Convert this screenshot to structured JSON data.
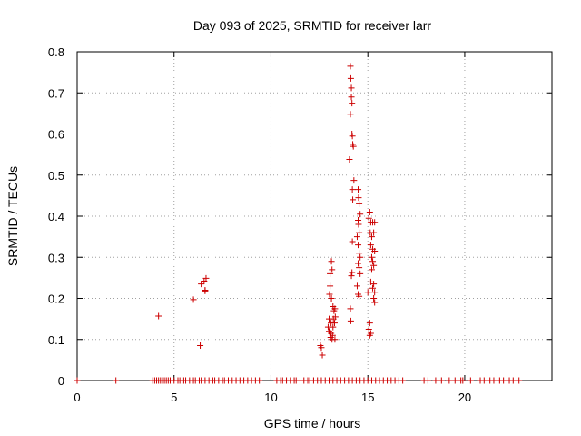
{
  "chart_data": {
    "type": "scatter",
    "title": "Day 093 of 2025, SRMTID for receiver larr",
    "xlabel": "GPS time / hours",
    "ylabel": "SRMTID / TECUs",
    "xlim": [
      0,
      24.5
    ],
    "ylim": [
      0,
      0.8
    ],
    "xticks": [
      0,
      5,
      10,
      15,
      20
    ],
    "yticks": [
      0,
      0.1,
      0.2,
      0.3,
      0.4,
      0.5,
      0.6,
      0.7,
      0.8
    ],
    "grid": true,
    "marker": "plus",
    "color": "#cc0000",
    "series": [
      {
        "name": "SRMTID",
        "points": [
          [
            4.2,
            0.157
          ],
          [
            6.0,
            0.197
          ],
          [
            6.35,
            0.085
          ],
          [
            6.4,
            0.235
          ],
          [
            6.55,
            0.242
          ],
          [
            6.6,
            0.218
          ],
          [
            6.65,
            0.249
          ],
          [
            6.6,
            0.22
          ],
          [
            12.55,
            0.085
          ],
          [
            12.6,
            0.08
          ],
          [
            12.65,
            0.062
          ],
          [
            12.95,
            0.13
          ],
          [
            13.0,
            0.12
          ],
          [
            13.0,
            0.15
          ],
          [
            13.02,
            0.21
          ],
          [
            13.05,
            0.23
          ],
          [
            13.05,
            0.26
          ],
          [
            13.08,
            0.105
          ],
          [
            13.1,
            0.115
          ],
          [
            13.1,
            0.14
          ],
          [
            13.12,
            0.2
          ],
          [
            13.12,
            0.29
          ],
          [
            13.15,
            0.27
          ],
          [
            13.15,
            0.1
          ],
          [
            13.18,
            0.11
          ],
          [
            13.2,
            0.13
          ],
          [
            13.2,
            0.18
          ],
          [
            13.22,
            0.15
          ],
          [
            13.25,
            0.17
          ],
          [
            13.28,
            0.14
          ],
          [
            13.3,
            0.1
          ],
          [
            13.3,
            0.175
          ],
          [
            13.32,
            0.155
          ],
          [
            14.05,
            0.538
          ],
          [
            14.1,
            0.648
          ],
          [
            14.1,
            0.765
          ],
          [
            14.12,
            0.735
          ],
          [
            14.15,
            0.712
          ],
          [
            14.15,
            0.69
          ],
          [
            14.18,
            0.675
          ],
          [
            14.18,
            0.6
          ],
          [
            14.2,
            0.595
          ],
          [
            14.2,
            0.465
          ],
          [
            14.22,
            0.44
          ],
          [
            14.22,
            0.575
          ],
          [
            14.25,
            0.57
          ],
          [
            14.28,
            0.487
          ],
          [
            14.1,
            0.175
          ],
          [
            14.12,
            0.145
          ],
          [
            14.15,
            0.255
          ],
          [
            14.18,
            0.263
          ],
          [
            14.2,
            0.338
          ],
          [
            14.5,
            0.465
          ],
          [
            14.52,
            0.445
          ],
          [
            14.55,
            0.43
          ],
          [
            14.5,
            0.39
          ],
          [
            14.52,
            0.38
          ],
          [
            14.55,
            0.36
          ],
          [
            14.45,
            0.35
          ],
          [
            14.5,
            0.33
          ],
          [
            14.55,
            0.31
          ],
          [
            14.6,
            0.3
          ],
          [
            14.5,
            0.285
          ],
          [
            14.55,
            0.275
          ],
          [
            14.6,
            0.26
          ],
          [
            14.45,
            0.23
          ],
          [
            14.5,
            0.21
          ],
          [
            14.55,
            0.205
          ],
          [
            14.6,
            0.405
          ],
          [
            15.05,
            0.395
          ],
          [
            15.1,
            0.41
          ],
          [
            15.15,
            0.385
          ],
          [
            15.12,
            0.36
          ],
          [
            15.2,
            0.35
          ],
          [
            15.25,
            0.385
          ],
          [
            15.35,
            0.385
          ],
          [
            15.3,
            0.36
          ],
          [
            15.25,
            0.32
          ],
          [
            15.35,
            0.315
          ],
          [
            15.15,
            0.33
          ],
          [
            15.2,
            0.3
          ],
          [
            15.25,
            0.29
          ],
          [
            15.3,
            0.28
          ],
          [
            15.2,
            0.27
          ],
          [
            15.15,
            0.24
          ],
          [
            15.3,
            0.235
          ],
          [
            15.25,
            0.225
          ],
          [
            15.35,
            0.215
          ],
          [
            15.3,
            0.2
          ],
          [
            15.35,
            0.19
          ],
          [
            15.1,
            0.14
          ],
          [
            15.05,
            0.125
          ],
          [
            15.1,
            0.11
          ],
          [
            15.15,
            0.115
          ],
          [
            15.0,
            0.215
          ],
          [
            0.0,
            0
          ],
          [
            2.0,
            0
          ],
          [
            3.9,
            0
          ],
          [
            4.0,
            0
          ],
          [
            4.1,
            0
          ],
          [
            4.2,
            0
          ],
          [
            4.3,
            0
          ],
          [
            4.4,
            0
          ],
          [
            4.5,
            0
          ],
          [
            4.6,
            0
          ],
          [
            4.7,
            0
          ],
          [
            4.8,
            0
          ],
          [
            5.0,
            0
          ],
          [
            5.2,
            0
          ],
          [
            5.3,
            0
          ],
          [
            5.5,
            0
          ],
          [
            5.6,
            0
          ],
          [
            5.8,
            0
          ],
          [
            6.0,
            0
          ],
          [
            6.1,
            0
          ],
          [
            6.3,
            0
          ],
          [
            6.4,
            0
          ],
          [
            6.6,
            0
          ],
          [
            6.8,
            0
          ],
          [
            7.0,
            0
          ],
          [
            7.1,
            0
          ],
          [
            7.3,
            0
          ],
          [
            7.5,
            0
          ],
          [
            7.6,
            0
          ],
          [
            7.8,
            0
          ],
          [
            8.0,
            0
          ],
          [
            8.2,
            0
          ],
          [
            8.4,
            0
          ],
          [
            8.6,
            0
          ],
          [
            8.8,
            0
          ],
          [
            9.0,
            0
          ],
          [
            9.2,
            0
          ],
          [
            9.4,
            0
          ],
          [
            10.3,
            0
          ],
          [
            10.5,
            0
          ],
          [
            10.6,
            0
          ],
          [
            10.8,
            0
          ],
          [
            11.0,
            0
          ],
          [
            11.2,
            0
          ],
          [
            11.3,
            0
          ],
          [
            11.5,
            0
          ],
          [
            11.7,
            0
          ],
          [
            11.9,
            0
          ],
          [
            12.0,
            0
          ],
          [
            12.2,
            0
          ],
          [
            12.4,
            0
          ],
          [
            12.6,
            0
          ],
          [
            12.8,
            0
          ],
          [
            13.0,
            0
          ],
          [
            13.2,
            0
          ],
          [
            13.4,
            0
          ],
          [
            13.6,
            0
          ],
          [
            13.8,
            0
          ],
          [
            14.0,
            0
          ],
          [
            14.2,
            0
          ],
          [
            14.4,
            0
          ],
          [
            14.6,
            0
          ],
          [
            14.8,
            0
          ],
          [
            15.0,
            0
          ],
          [
            15.2,
            0
          ],
          [
            15.4,
            0
          ],
          [
            15.6,
            0
          ],
          [
            15.8,
            0
          ],
          [
            16.0,
            0
          ],
          [
            16.2,
            0
          ],
          [
            16.4,
            0
          ],
          [
            16.6,
            0
          ],
          [
            16.8,
            0
          ],
          [
            17.9,
            0
          ],
          [
            18.1,
            0
          ],
          [
            18.5,
            0
          ],
          [
            18.8,
            0
          ],
          [
            19.2,
            0
          ],
          [
            19.5,
            0
          ],
          [
            19.8,
            0
          ],
          [
            19.9,
            0
          ],
          [
            20.3,
            0
          ],
          [
            20.8,
            0
          ],
          [
            21.0,
            0
          ],
          [
            21.3,
            0
          ],
          [
            21.5,
            0
          ],
          [
            21.8,
            0
          ],
          [
            22.0,
            0
          ],
          [
            22.3,
            0
          ],
          [
            22.5,
            0
          ],
          [
            22.8,
            0
          ]
        ]
      }
    ]
  }
}
